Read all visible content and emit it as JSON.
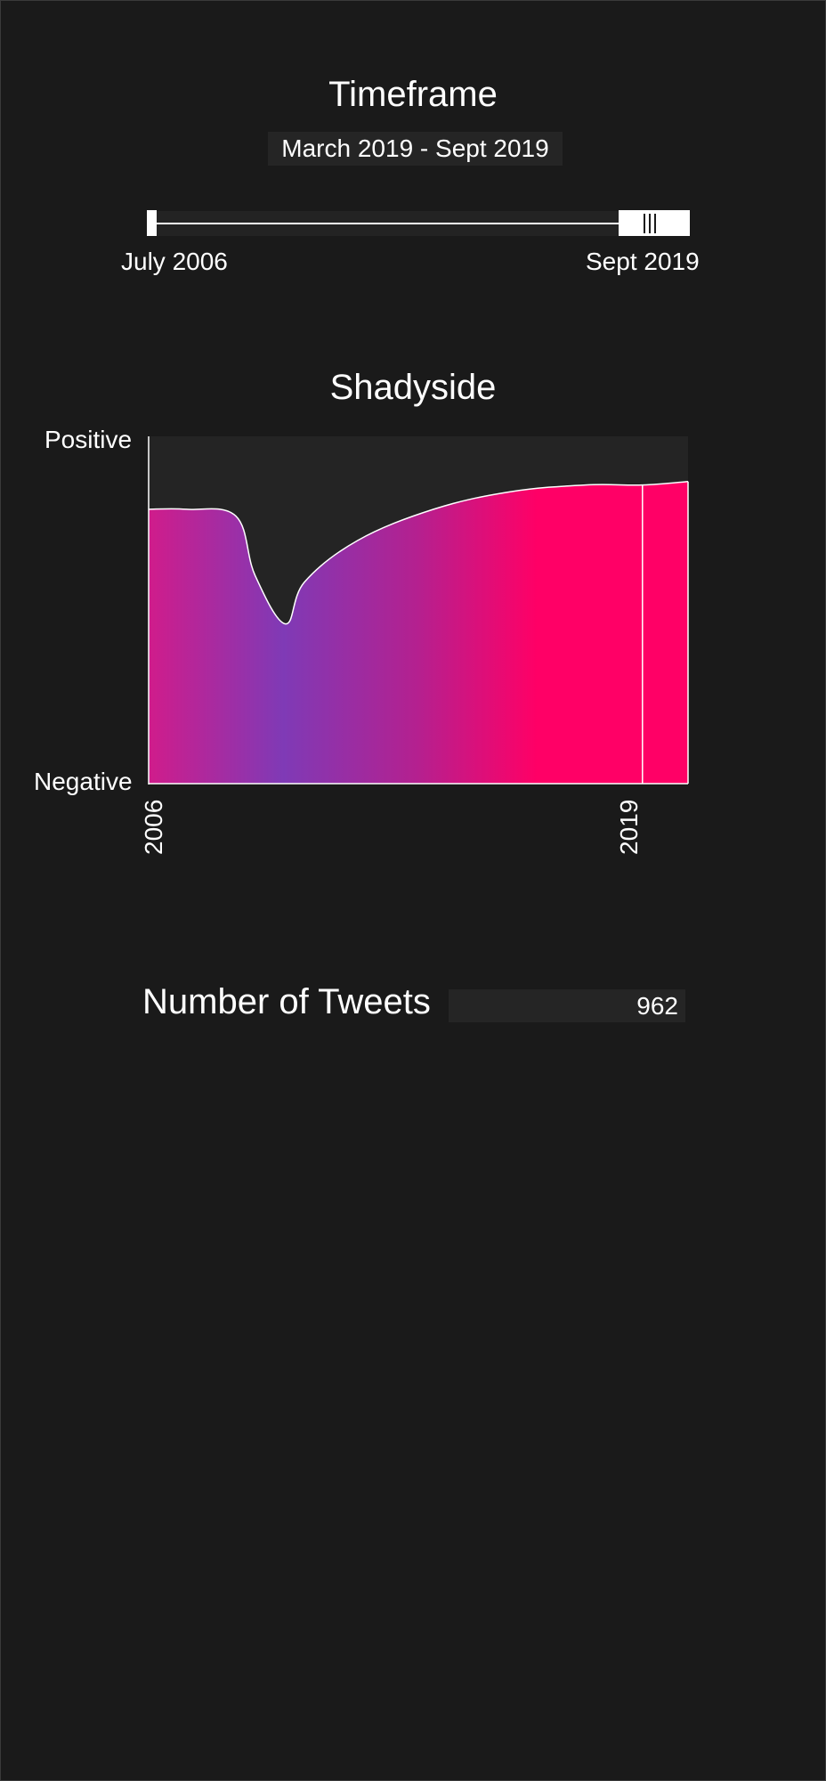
{
  "timeframe": {
    "title": "Timeframe",
    "range_label": "March 2019 - Sept 2019",
    "slider_min_label": "July 2006",
    "slider_max_label": "Sept 2019",
    "selection_start_fraction": 0.87,
    "selection_end_fraction": 1.0
  },
  "chart": {
    "title": "Shadyside",
    "y_top_label": "Positive",
    "y_bottom_label": "Negative",
    "x_tick_start": "2006",
    "x_tick_end": "2019"
  },
  "chart_data": {
    "type": "area",
    "title": "Shadyside",
    "ylabel_top": "Positive",
    "ylabel_bottom": "Negative",
    "x_ticks": [
      "2006",
      "2019"
    ],
    "ylim": [
      0,
      1
    ],
    "x": [
      2006.0,
      2007.0,
      2008.3,
      2008.8,
      2009.6,
      2010.1,
      2011.5,
      2013.5,
      2015.5,
      2017.5,
      2019.0,
      2020.2
    ],
    "values": [
      0.79,
      0.79,
      0.77,
      0.6,
      0.46,
      0.58,
      0.7,
      0.79,
      0.84,
      0.86,
      0.86,
      0.87
    ],
    "highlight_start_x": 2019.0,
    "colors": {
      "pink": "#ff0066",
      "purple": "#7f3ab6",
      "border": "#ffffff"
    }
  },
  "tweets": {
    "label": "Number of Tweets",
    "value": "962"
  }
}
